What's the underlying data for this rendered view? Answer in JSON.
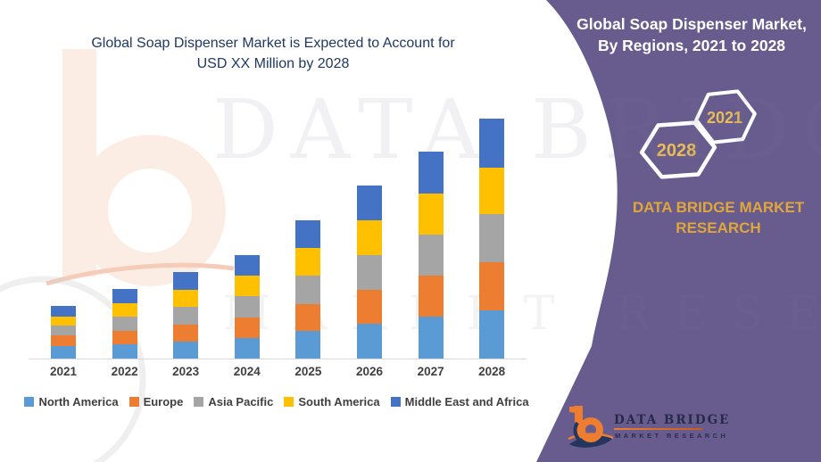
{
  "header": {
    "left_title_line1": "Global Soap Dispenser Market is Expected to Account for",
    "left_title_line2": "USD XX Million by 2028",
    "right_title_line1": "Global Soap Dispenser Market,",
    "right_title_line2": "By Regions, 2021 to 2028"
  },
  "side_panel": {
    "hexagon_back_year": "2028",
    "hexagon_front_year": "2021",
    "brand_line1": "DATA BRIDGE MARKET",
    "brand_line2": "RESEARCH"
  },
  "logo": {
    "name": "DATA BRIDGE",
    "tagline": "MARKET RESEARCH"
  },
  "watermark": {
    "line1": "DATA BRIDGE",
    "line2": "MARKET RESEARCH"
  },
  "colors": {
    "panel_purple": "#685C8E",
    "title_navy": "#1F3864",
    "hexagon_gold": "#E9BC55",
    "brand_gold": "#DFA63C",
    "axis_text": "#404040",
    "axis_line": "#D9D9D9",
    "logo_orange": "#ED7D31",
    "logo_navy": "#24355E"
  },
  "chart_data": {
    "type": "bar",
    "stacked": true,
    "title": "Global Soap Dispenser Market is Expected to Account for USD XX Million by 2028",
    "xlabel": "",
    "ylabel": "",
    "value_note": "USD XX Million (axis unlabeled; values are relative estimates)",
    "categories": [
      "2021",
      "2022",
      "2023",
      "2024",
      "2025",
      "2026",
      "2027",
      "2028"
    ],
    "series": [
      {
        "name": "North America",
        "color": "#5B9BD5",
        "values": [
          14,
          16,
          19,
          23,
          31,
          39,
          47,
          54
        ]
      },
      {
        "name": "Europe",
        "color": "#ED7D31",
        "values": [
          12,
          15,
          19,
          23,
          30,
          38,
          46,
          54
        ]
      },
      {
        "name": "Asia Pacific",
        "color": "#A5A5A5",
        "values": [
          11,
          16,
          20,
          24,
          32,
          39,
          46,
          54
        ]
      },
      {
        "name": "South America",
        "color": "#FFC000",
        "values": [
          10,
          15,
          19,
          23,
          31,
          39,
          46,
          52
        ]
      },
      {
        "name": "Middle East and Africa",
        "color": "#4472C4",
        "values": [
          12,
          16,
          20,
          23,
          31,
          39,
          47,
          55
        ]
      }
    ],
    "totals": [
      59,
      78,
      97,
      116,
      155,
      194,
      232,
      269
    ],
    "ylim": [
      0,
      280
    ],
    "grid": false,
    "legend_position": "bottom"
  }
}
